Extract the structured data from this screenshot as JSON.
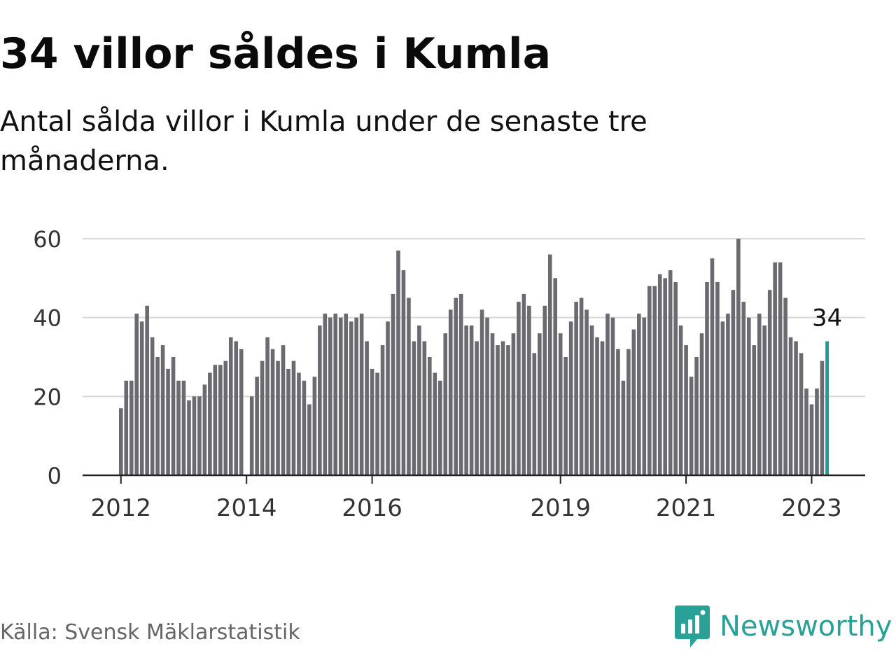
{
  "title": "34 villor såldes i Kumla",
  "subtitle": "Antal sålda villor i Kumla under de senaste tre månaderna.",
  "source": "Källa: Svensk Mäklarstatistik",
  "brand": {
    "name": "Newsworthy",
    "logo_icon": "bar-chart-bubble-icon"
  },
  "colors": {
    "bar": "#6b6a70",
    "highlight": "#1d9e93",
    "grid": "#d8d8d8",
    "axis": "#222222",
    "tick_text": "#333333",
    "brand": "#2aa197"
  },
  "chart_data": {
    "type": "bar",
    "title": "34 villor såldes i Kumla",
    "xlabel": "",
    "ylabel": "",
    "ylim": [
      0,
      60
    ],
    "yticks": [
      0,
      20,
      40,
      60
    ],
    "grid": true,
    "legend": "none",
    "x_ticks": [
      {
        "label": "2012",
        "index": 0
      },
      {
        "label": "2014",
        "index": 24
      },
      {
        "label": "2016",
        "index": 48
      },
      {
        "label": "2019",
        "index": 84
      },
      {
        "label": "2021",
        "index": 108
      },
      {
        "label": "2023",
        "index": 132
      }
    ],
    "annotation": {
      "text": "34",
      "index": 135
    },
    "highlight_index": 135,
    "series": [
      {
        "values": [
          17,
          24,
          24,
          41,
          39,
          43,
          35,
          30,
          33,
          27,
          30,
          24,
          24,
          19,
          20,
          20,
          23,
          26,
          28,
          28,
          29,
          35,
          34,
          32,
          0,
          20,
          25,
          29,
          35,
          32,
          29,
          33,
          27,
          29,
          26,
          24,
          18,
          25,
          38,
          41,
          40,
          41,
          40,
          41,
          39,
          40,
          41,
          34,
          27,
          26,
          33,
          39,
          46,
          57,
          52,
          45,
          34,
          38,
          34,
          30,
          26,
          24,
          36,
          42,
          45,
          46,
          38,
          38,
          34,
          42,
          40,
          36,
          33,
          34,
          33,
          36,
          44,
          46,
          43,
          31,
          36,
          43,
          56,
          50,
          36,
          30,
          39,
          44,
          45,
          42,
          38,
          35,
          34,
          41,
          40,
          32,
          24,
          32,
          37,
          41,
          40,
          48,
          48,
          51,
          50,
          52,
          49,
          38,
          33,
          25,
          30,
          36,
          49,
          55,
          49,
          39,
          41,
          47,
          60,
          44,
          40,
          33,
          41,
          38,
          47,
          54,
          54,
          45,
          35,
          34,
          31,
          22,
          18,
          22,
          29,
          34
        ]
      }
    ]
  }
}
